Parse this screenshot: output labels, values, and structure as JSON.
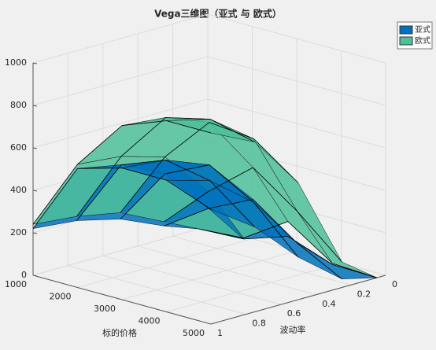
{
  "chart_data": {
    "type": "surface",
    "title": "Vega三维图（亚式 与 欧式）",
    "xlabel": "标的价格",
    "ylabel": "波动率",
    "x": [
      1000,
      2000,
      3000,
      4000,
      5000
    ],
    "y": [
      0.05,
      0.25,
      0.5,
      0.75,
      1
    ],
    "xlim": [
      1000,
      5000
    ],
    "ylim": [
      0,
      1
    ],
    "zlim": [
      0,
      1000
    ],
    "xticks": [
      1000,
      2000,
      3000,
      4000,
      5000
    ],
    "yticks": [
      0,
      0.2,
      0.4,
      0.6,
      0.8,
      1
    ],
    "zticks": [
      0,
      200,
      400,
      600,
      800,
      1000
    ],
    "grid": true,
    "legend": "upper right",
    "series": [
      {
        "name": "亚式",
        "color": "#0072bd",
        "z": [
          [
            0,
            10,
            80,
            5,
            0
          ],
          [
            60,
            200,
            300,
            150,
            40
          ],
          [
            150,
            420,
            520,
            400,
            200
          ],
          [
            200,
            520,
            600,
            560,
            400
          ],
          [
            220,
            560,
            620,
            620,
            540
          ]
        ]
      },
      {
        "name": "欧式",
        "color": "#4dbf9a",
        "z": [
          [
            0,
            15,
            150,
            10,
            0
          ],
          [
            80,
            280,
            450,
            300,
            120
          ],
          [
            180,
            500,
            720,
            700,
            550
          ],
          [
            220,
            560,
            800,
            850,
            800
          ],
          [
            240,
            580,
            820,
            900,
            900
          ]
        ]
      }
    ]
  }
}
